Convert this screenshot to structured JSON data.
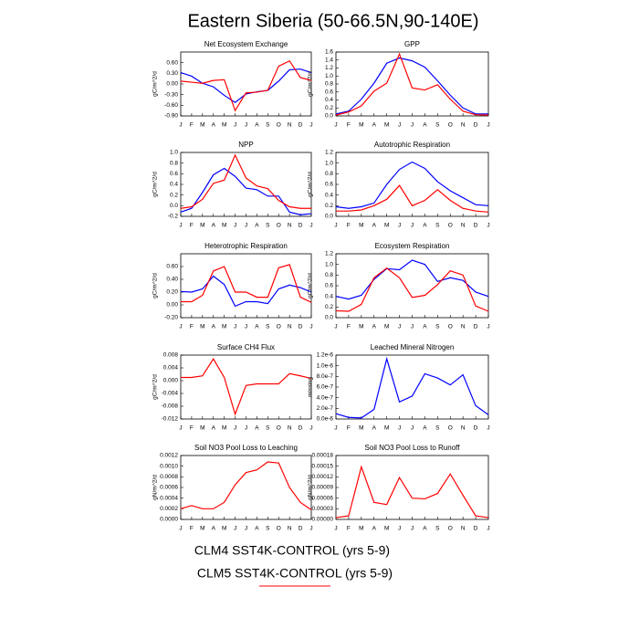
{
  "title": "Eastern Siberia (50-66.5N,90-140E)",
  "chart_data": [
    {
      "type": "line",
      "title": "Net Ecosystem Exchange",
      "ylabel": "gC/m^2/d",
      "categories": [
        "J",
        "F",
        "M",
        "A",
        "M",
        "J",
        "J",
        "A",
        "S",
        "O",
        "N",
        "D",
        "J"
      ],
      "ylim": [
        -0.9,
        0.9
      ],
      "yticks": [
        {
          "value": -0.9,
          "label": "-0.90"
        },
        {
          "value": -0.6,
          "label": "-0.60"
        },
        {
          "value": -0.3,
          "label": "-0.30"
        },
        {
          "value": 0,
          "label": "0.00"
        },
        {
          "value": 0.3,
          "label": "0.30"
        },
        {
          "value": 0.6,
          "label": "0.60"
        }
      ],
      "series": [
        {
          "name": "CLM4 SST4K-CONTROL (yrs 5-9)",
          "color": "#0000ff",
          "values": [
            0.32,
            0.22,
            0.02,
            -0.08,
            -0.32,
            -0.52,
            -0.28,
            -0.22,
            -0.18,
            0.08,
            0.4,
            0.42,
            0.32
          ]
        },
        {
          "name": "CLM5 SST4K-CONTROL (yrs 5-9)",
          "color": "#ff0000",
          "values": [
            0.08,
            0.05,
            0.02,
            0.1,
            0.12,
            -0.75,
            -0.25,
            -0.23,
            -0.18,
            0.5,
            0.65,
            0.18,
            0.1
          ]
        }
      ]
    },
    {
      "type": "line",
      "title": "GPP",
      "ylabel": "gC/m^2/d",
      "categories": [
        "J",
        "F",
        "M",
        "A",
        "M",
        "J",
        "J",
        "A",
        "S",
        "O",
        "N",
        "D",
        "J"
      ],
      "ylim": [
        0,
        1.6
      ],
      "yticks": [
        {
          "value": 0,
          "label": "0.0"
        },
        0.2,
        0.4,
        0.6,
        0.8,
        {
          "value": 1,
          "label": "1.0"
        },
        1.2,
        1.4,
        1.6
      ],
      "series": [
        {
          "name": "CLM4 SST4K-CONTROL (yrs 5-9)",
          "color": "#0000ff",
          "values": [
            0.05,
            0.12,
            0.42,
            0.82,
            1.32,
            1.45,
            1.38,
            1.22,
            0.88,
            0.52,
            0.2,
            0.05,
            0.05
          ]
        },
        {
          "name": "CLM5 SST4K-CONTROL (yrs 5-9)",
          "color": "#ff0000",
          "values": [
            0.02,
            0.1,
            0.25,
            0.62,
            0.82,
            1.55,
            0.7,
            0.65,
            0.78,
            0.42,
            0.12,
            0.03,
            0.02
          ]
        }
      ]
    },
    {
      "type": "line",
      "title": "NPP",
      "ylabel": "gC/m^2/d",
      "categories": [
        "J",
        "F",
        "M",
        "A",
        "M",
        "J",
        "J",
        "A",
        "S",
        "O",
        "N",
        "D",
        "J"
      ],
      "ylim": [
        -0.2,
        1.0
      ],
      "yticks": [
        -0.2,
        {
          "value": 0,
          "label": "0.0"
        },
        0.2,
        0.4,
        0.6,
        0.8,
        {
          "value": 1,
          "label": "1.0"
        }
      ],
      "series": [
        {
          "name": "CLM4 SST4K-CONTROL (yrs 5-9)",
          "color": "#0000ff",
          "values": [
            -0.12,
            -0.05,
            0.25,
            0.58,
            0.7,
            0.55,
            0.33,
            0.3,
            0.18,
            0.18,
            -0.12,
            -0.17,
            -0.15
          ]
        },
        {
          "name": "CLM5 SST4K-CONTROL (yrs 5-9)",
          "color": "#ff0000",
          "values": [
            -0.05,
            -0.02,
            0.12,
            0.42,
            0.48,
            0.95,
            0.52,
            0.37,
            0.32,
            0.1,
            -0.02,
            -0.05,
            -0.05
          ]
        }
      ]
    },
    {
      "type": "line",
      "title": "Autotrophic Respiration",
      "ylabel": "gC/m^2/d",
      "categories": [
        "J",
        "F",
        "M",
        "A",
        "M",
        "J",
        "J",
        "A",
        "S",
        "O",
        "N",
        "D",
        "J"
      ],
      "ylim": [
        0,
        1.2
      ],
      "yticks": [
        {
          "value": 0,
          "label": "0.0"
        },
        0.2,
        0.4,
        0.6,
        0.8,
        {
          "value": 1,
          "label": "1.0"
        },
        1.2
      ],
      "series": [
        {
          "name": "CLM4 SST4K-CONTROL (yrs 5-9)",
          "color": "#0000ff",
          "values": [
            0.18,
            0.15,
            0.18,
            0.25,
            0.6,
            0.88,
            1.02,
            0.9,
            0.65,
            0.48,
            0.35,
            0.22,
            0.2
          ]
        },
        {
          "name": "CLM5 SST4K-CONTROL (yrs 5-9)",
          "color": "#ff0000",
          "values": [
            0.1,
            0.1,
            0.12,
            0.2,
            0.32,
            0.58,
            0.2,
            0.3,
            0.5,
            0.3,
            0.15,
            0.1,
            0.08
          ]
        }
      ]
    },
    {
      "type": "line",
      "title": "Heterotrophic Respiration",
      "ylabel": "gC/m^2/d",
      "categories": [
        "J",
        "F",
        "M",
        "A",
        "M",
        "J",
        "J",
        "A",
        "S",
        "O",
        "N",
        "D",
        "J"
      ],
      "ylim": [
        -0.2,
        0.8
      ],
      "yticks": [
        {
          "value": -0.2,
          "label": "-0.20"
        },
        {
          "value": 0,
          "label": "0.00"
        },
        {
          "value": 0.2,
          "label": "0.20"
        },
        {
          "value": 0.4,
          "label": "0.40"
        },
        {
          "value": 0.6,
          "label": "0.60"
        }
      ],
      "series": [
        {
          "name": "CLM4 SST4K-CONTROL (yrs 5-9)",
          "color": "#0000ff",
          "values": [
            0.21,
            0.2,
            0.25,
            0.45,
            0.32,
            -0.02,
            0.05,
            0.05,
            0.02,
            0.25,
            0.31,
            0.27,
            0.2
          ]
        },
        {
          "name": "CLM5 SST4K-CONTROL (yrs 5-9)",
          "color": "#ff0000",
          "values": [
            0.05,
            0.05,
            0.15,
            0.53,
            0.6,
            0.2,
            0.2,
            0.12,
            0.12,
            0.58,
            0.63,
            0.12,
            0.04
          ]
        }
      ]
    },
    {
      "type": "line",
      "title": "Ecosystem Respiration",
      "ylabel": "gC/m^2/d",
      "categories": [
        "J",
        "F",
        "M",
        "A",
        "M",
        "J",
        "J",
        "A",
        "S",
        "O",
        "N",
        "D",
        "J"
      ],
      "ylim": [
        0,
        1.2
      ],
      "yticks": [
        {
          "value": 0,
          "label": "0.0"
        },
        0.2,
        0.4,
        0.6,
        0.8,
        {
          "value": 1,
          "label": "1.0"
        },
        1.2
      ],
      "series": [
        {
          "name": "CLM4 SST4K-CONTROL (yrs 5-9)",
          "color": "#0000ff",
          "values": [
            0.4,
            0.35,
            0.42,
            0.72,
            0.92,
            0.9,
            1.08,
            1.0,
            0.68,
            0.75,
            0.7,
            0.48,
            0.4
          ]
        },
        {
          "name": "CLM5 SST4K-CONTROL (yrs 5-9)",
          "color": "#ff0000",
          "values": [
            0.13,
            0.12,
            0.25,
            0.75,
            0.93,
            0.75,
            0.38,
            0.42,
            0.62,
            0.88,
            0.8,
            0.22,
            0.12
          ]
        }
      ]
    },
    {
      "type": "line",
      "title": "Surface CH4 Flux",
      "ylabel": "gC/m^2/d",
      "categories": [
        "J",
        "F",
        "M",
        "A",
        "M",
        "J",
        "J",
        "A",
        "S",
        "O",
        "N",
        "D",
        "J"
      ],
      "ylim": [
        -0.012,
        0.008
      ],
      "yticks": [
        -0.012,
        -0.008,
        -0.004,
        {
          "value": 0,
          "label": "0.000"
        },
        0.004,
        0.008
      ],
      "series": [
        {
          "name": "CLM5 SST4K-CONTROL (yrs 5-9)",
          "color": "#ff0000",
          "values": [
            0.001,
            0.001,
            0.0015,
            0.0068,
            0.001,
            -0.0105,
            -0.0015,
            -0.001,
            -0.001,
            -0.001,
            0.0022,
            0.0015,
            0.0007
          ]
        }
      ]
    },
    {
      "type": "line",
      "title": "Leached Mineral Nitrogen",
      "ylabel": "missing",
      "categories": [
        "J",
        "F",
        "M",
        "A",
        "M",
        "J",
        "J",
        "A",
        "S",
        "O",
        "N",
        "D",
        "J"
      ],
      "ylim": [
        0,
        1.2e-06
      ],
      "yticks": [
        {
          "value": 0,
          "label": "0.0e-6"
        },
        {
          "value": 2e-07,
          "label": "2.0e-7"
        },
        {
          "value": 4e-07,
          "label": "4.0e-7"
        },
        {
          "value": 6e-07,
          "label": "6.0e-7"
        },
        {
          "value": 8e-07,
          "label": "8.0e-7"
        },
        {
          "value": 1e-06,
          "label": "1.0e-6"
        },
        {
          "value": 1.2e-06,
          "label": "1.2e-6"
        }
      ],
      "series": [
        {
          "name": "CLM4 SST4K-CONTROL (yrs 5-9)",
          "color": "#0000ff",
          "values": [
            1e-07,
            3e-08,
            2e-08,
            1.8e-07,
            1.13e-06,
            3.2e-07,
            4.3e-07,
            8.5e-07,
            7.7e-07,
            6.4e-07,
            8.3e-07,
            2.5e-07,
            8e-08
          ]
        }
      ]
    },
    {
      "type": "line",
      "title": "Soil NO3 Pool Loss to Leaching",
      "ylabel": "gN/m^2/d",
      "categories": [
        "J",
        "F",
        "M",
        "A",
        "M",
        "J",
        "J",
        "A",
        "S",
        "O",
        "N",
        "D",
        "J"
      ],
      "ylim": [
        0,
        0.0012
      ],
      "yticks": [
        {
          "value": 0,
          "label": "0.0000"
        },
        0.0002,
        0.0004,
        0.0006,
        0.0008,
        {
          "value": 0.001,
          "label": "0.0010"
        },
        0.0012
      ],
      "series": [
        {
          "name": "CLM5 SST4K-CONTROL (yrs 5-9)",
          "color": "#ff0000",
          "values": [
            0.0002,
            0.00026,
            0.0002,
            0.0002,
            0.00032,
            0.00065,
            0.00088,
            0.00093,
            0.00108,
            0.00106,
            0.0006,
            0.00032,
            0.00018
          ]
        }
      ]
    },
    {
      "type": "line",
      "title": "Soil NO3 Pool Loss to Runoff",
      "ylabel": "gN/m^2/d",
      "categories": [
        "J",
        "F",
        "M",
        "A",
        "M",
        "J",
        "J",
        "A",
        "S",
        "O",
        "N",
        "D",
        "J"
      ],
      "ylim": [
        0,
        0.00018
      ],
      "yticks": [
        {
          "value": 0,
          "label": "0.00000"
        },
        3e-05,
        6e-05,
        9e-05,
        0.00012,
        0.00015,
        0.00018
      ],
      "series": [
        {
          "name": "CLM5 SST4K-CONTROL (yrs 5-9)",
          "color": "#ff0000",
          "values": [
            5e-06,
            1e-05,
            0.000148,
            4.8e-05,
            4.2e-05,
            0.000118,
            6e-05,
            5.8e-05,
            7.3e-05,
            0.000128,
            6.8e-05,
            1e-05,
            5e-06
          ]
        }
      ]
    }
  ]
}
